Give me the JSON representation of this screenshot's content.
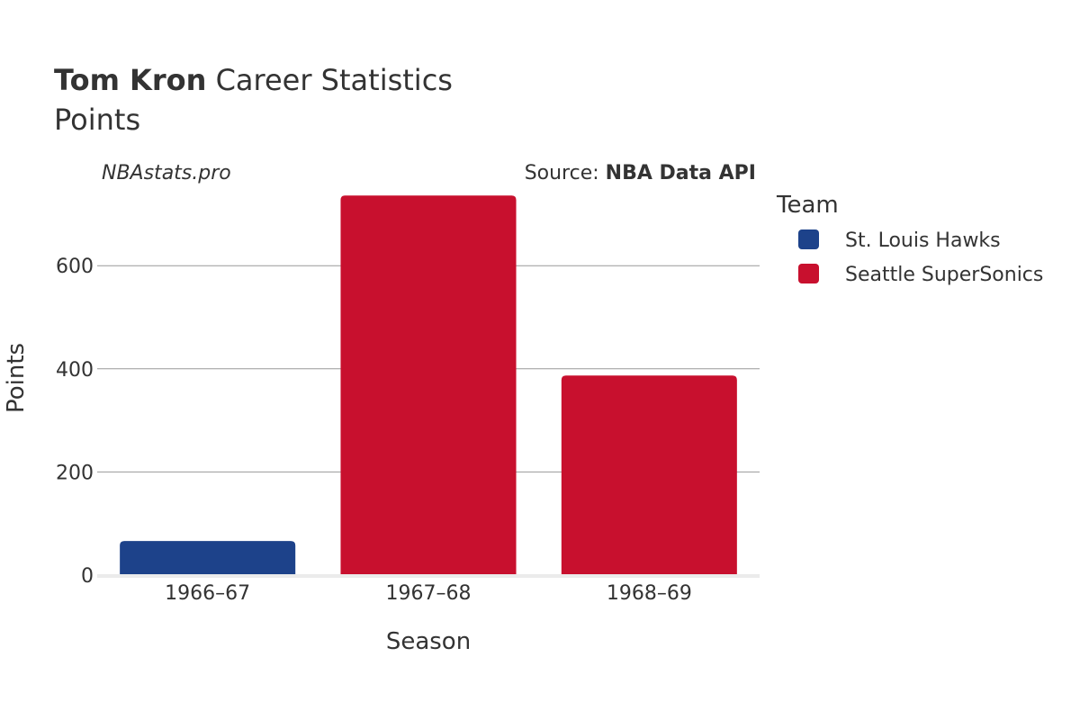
{
  "header": {
    "player_name": "Tom Kron",
    "title_rest": "Career Statistics",
    "subtitle": "Points"
  },
  "credit": "NBAstats.pro",
  "source": {
    "prefix": "Source: ",
    "name": "NBA Data API"
  },
  "chart_data": {
    "type": "bar",
    "categories": [
      "1966–67",
      "1967–68",
      "1968–69"
    ],
    "series": [
      {
        "name": "St. Louis Hawks",
        "color": "#1d428a",
        "values": [
          66,
          null,
          null
        ]
      },
      {
        "name": "Seattle SuperSonics",
        "color": "#c8102e",
        "values": [
          null,
          736,
          387
        ]
      }
    ],
    "xlabel": "Season",
    "ylabel": "Points",
    "ylim": [
      0,
      740
    ],
    "yticks": [
      0,
      200,
      400,
      600
    ],
    "grid": true,
    "legend": {
      "title": "Team",
      "placement": "right"
    }
  }
}
